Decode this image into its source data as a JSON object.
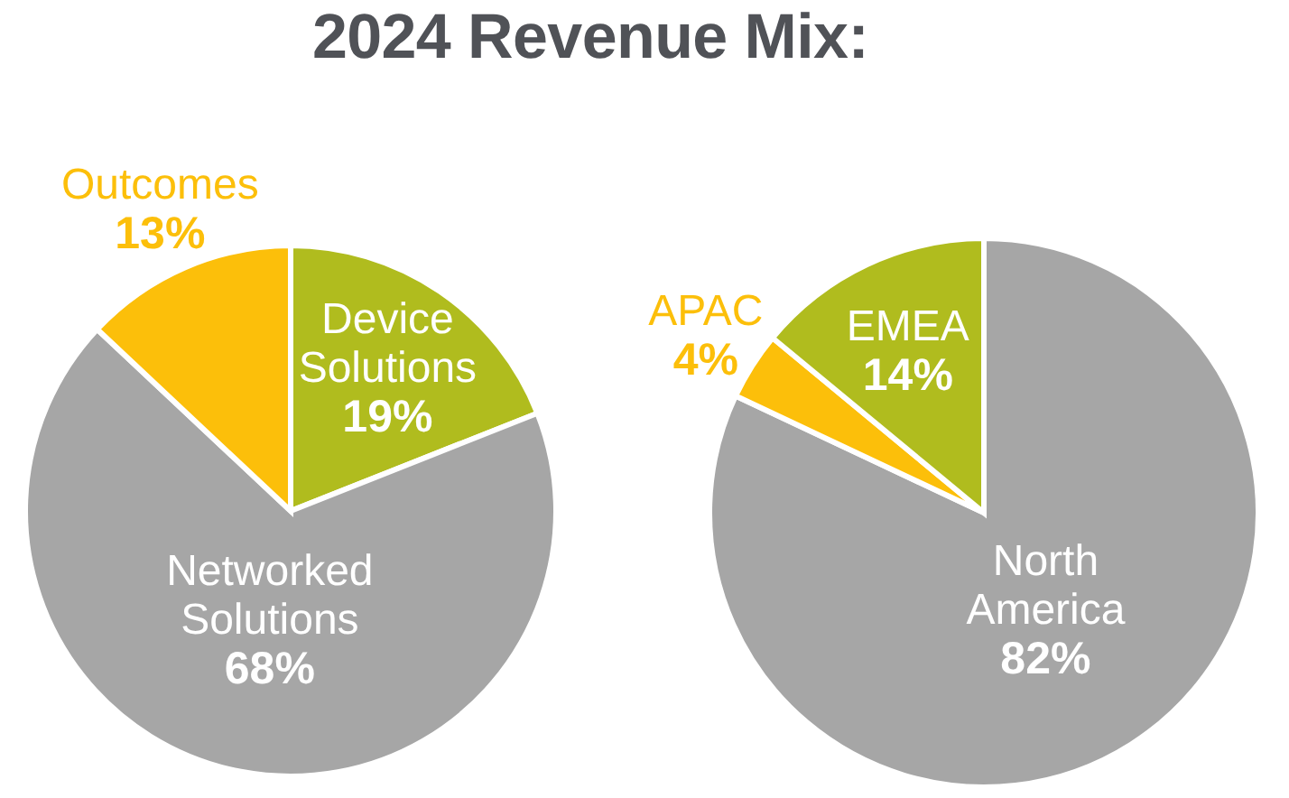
{
  "chart_data": [
    {
      "type": "pie",
      "title": "2024 Revenue Mix:",
      "categories": [
        "Device Solutions",
        "Networked Solutions",
        "Outcomes"
      ],
      "values": [
        19,
        68,
        13
      ],
      "colors": [
        "#b0bc1e",
        "#a6a6a6",
        "#fcbf0a"
      ],
      "value_labels": [
        "19%",
        "68%",
        "13%"
      ]
    },
    {
      "type": "pie",
      "categories": [
        "North America",
        "APAC",
        "EMEA"
      ],
      "values": [
        82,
        4,
        14
      ],
      "colors": [
        "#a6a6a6",
        "#fcbf0a",
        "#b0bc1e"
      ],
      "value_labels": [
        "82%",
        "4%",
        "14%"
      ]
    }
  ]
}
